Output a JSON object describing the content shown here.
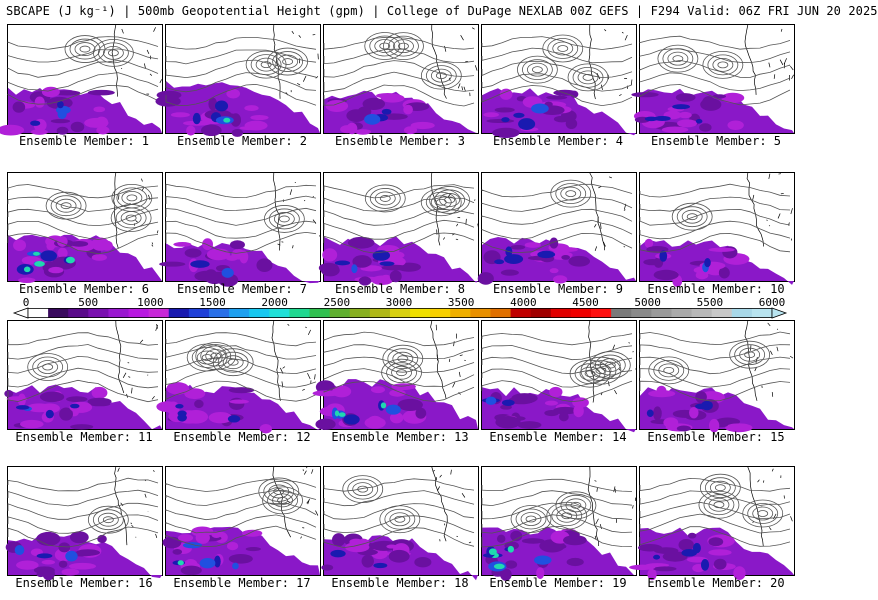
{
  "header": {
    "title": "SBCAPE (J kg⁻¹) | 500mb Geopotential Height (gpm) | College of DuPage NEXLAB 00Z GEFS | F294 Valid: 06Z FRI JUN 20 2025"
  },
  "panels": [
    {
      "label": "Ensemble Member: 1",
      "cape_level": 0.7
    },
    {
      "label": "Ensemble Member: 2",
      "cape_level": 0.9
    },
    {
      "label": "Ensemble Member: 3",
      "cape_level": 0.5
    },
    {
      "label": "Ensemble Member: 4",
      "cape_level": 0.6
    },
    {
      "label": "Ensemble Member: 5",
      "cape_level": 0.6
    },
    {
      "label": "Ensemble Member: 6",
      "cape_level": 0.8
    },
    {
      "label": "Ensemble Member: 7",
      "cape_level": 0.4
    },
    {
      "label": "Ensemble Member: 8",
      "cape_level": 0.6
    },
    {
      "label": "Ensemble Member: 9",
      "cape_level": 0.6
    },
    {
      "label": "Ensemble Member: 10",
      "cape_level": 0.5
    },
    {
      "label": "Ensemble Member: 11",
      "cape_level": 0.6
    },
    {
      "label": "Ensemble Member: 12",
      "cape_level": 0.6
    },
    {
      "label": "Ensemble Member: 13",
      "cape_level": 0.8
    },
    {
      "label": "Ensemble Member: 14",
      "cape_level": 0.5
    },
    {
      "label": "Ensemble Member: 15",
      "cape_level": 0.5
    },
    {
      "label": "Ensemble Member: 16",
      "cape_level": 0.5
    },
    {
      "label": "Ensemble Member: 17",
      "cape_level": 0.8
    },
    {
      "label": "Ensemble Member: 18",
      "cape_level": 0.4
    },
    {
      "label": "Ensemble Member: 19",
      "cape_level": 0.8
    },
    {
      "label": "Ensemble Member: 20",
      "cape_level": 0.7
    }
  ],
  "colorbar": {
    "ticks": [
      "0",
      "500",
      "1000",
      "1500",
      "2000",
      "2500",
      "3000",
      "3500",
      "4000",
      "4500",
      "5000",
      "5500",
      "6000"
    ],
    "colors": [
      "#ffffff",
      "#3a0a5e",
      "#5a0a8a",
      "#7a10b0",
      "#9a18d0",
      "#b818e0",
      "#c828d8",
      "#1a1ab0",
      "#2040d8",
      "#2a70e8",
      "#1ea0f0",
      "#18c8f0",
      "#20e0d8",
      "#20d890",
      "#30c050",
      "#60b030",
      "#88b020",
      "#b0b818",
      "#d8d010",
      "#f0e000",
      "#f8d000",
      "#f0b000",
      "#e89000",
      "#e07000",
      "#c00000",
      "#a00000",
      "#e00000",
      "#f00000",
      "#ff1010",
      "#7a7a7a",
      "#8a8a8a",
      "#9a9a9a",
      "#aaaaaa",
      "#b8b8b8",
      "#c8c8c8",
      "#a8d8e8",
      "#b8e4f0"
    ]
  }
}
